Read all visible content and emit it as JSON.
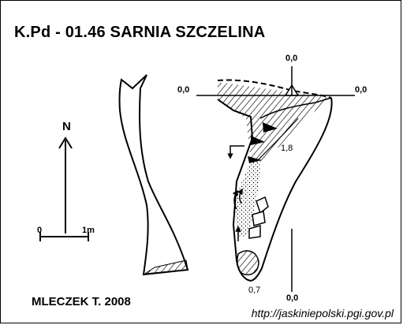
{
  "title": "K.Pd - 01.46  SARNIA SZCZELINA",
  "author": "MLECZEK T. 2008",
  "source_url": "http://jaskiniepolski.pgi.gov.pl",
  "north_label": "N",
  "scale": {
    "start": "0",
    "end": "1m"
  },
  "levels": {
    "left_top": "0,0",
    "top": "0,0",
    "right_top": "0,0",
    "bottom": "0,0"
  },
  "depths": {
    "mid": "1,8",
    "bottom": "0,7"
  }
}
